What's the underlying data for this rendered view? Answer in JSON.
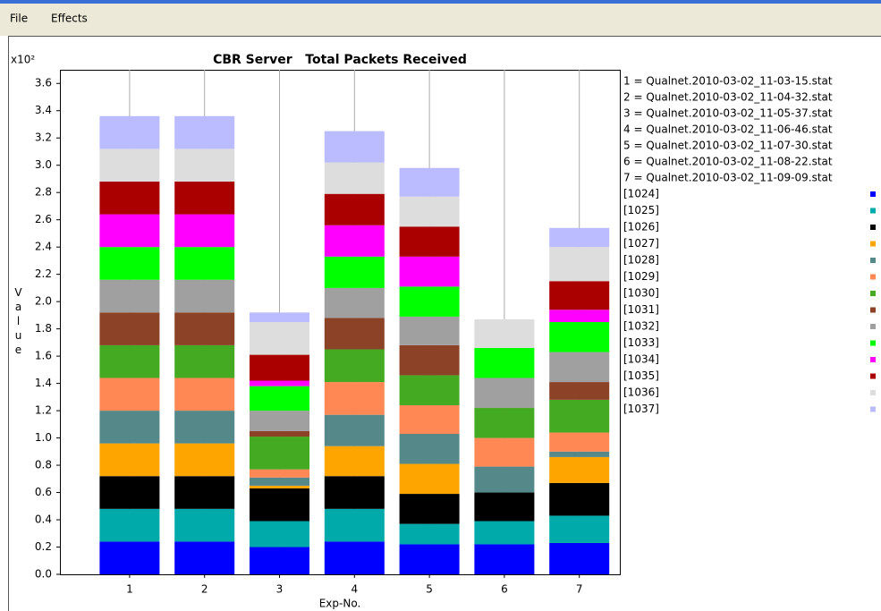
{
  "menu": [
    "File",
    "Effects"
  ],
  "chart_data": {
    "type": "stacked_bar",
    "title": "CBR Server   Total Packets Received",
    "y_scale_label": "x10²",
    "y_label": "Value",
    "x_label": "Exp-No.",
    "categories": [
      "1",
      "2",
      "3",
      "4",
      "5",
      "6",
      "7"
    ],
    "category_legend": [
      "1 = Qualnet.2010-03-02_11-03-15.stat",
      "2 = Qualnet.2010-03-02_11-04-32.stat",
      "3 = Qualnet.2010-03-02_11-05-37.stat",
      "4 = Qualnet.2010-03-02_11-06-46.stat",
      "5 = Qualnet.2010-03-02_11-07-30.stat",
      "6 = Qualnet.2010-03-02_11-08-22.stat",
      "7 = Qualnet.2010-03-02_11-09-09.stat"
    ],
    "ylim": [
      0,
      3.7
    ],
    "yticks": [
      {
        "value": 0,
        "label": "0.0"
      },
      0.2,
      0.4,
      0.6,
      0.8,
      {
        "value": 1,
        "label": "1.0"
      },
      1.2,
      1.4,
      1.6,
      1.8,
      {
        "value": 2,
        "label": "2.0"
      },
      2.2,
      2.4,
      2.6,
      2.8,
      {
        "value": 3,
        "label": "3.0"
      },
      3.2,
      3.4,
      3.6
    ],
    "series": [
      {
        "name": "[1024]",
        "color": "#0000ff",
        "values": [
          0.24,
          0.24,
          0.2,
          0.24,
          0.22,
          0.22,
          0.23
        ]
      },
      {
        "name": "[1025]",
        "color": "#00aaaa",
        "values": [
          0.24,
          0.24,
          0.19,
          0.24,
          0.15,
          0.17,
          0.2
        ]
      },
      {
        "name": "[1026]",
        "color": "#000000",
        "values": [
          0.24,
          0.24,
          0.24,
          0.24,
          0.22,
          0.21,
          0.24
        ]
      },
      {
        "name": "[1027]",
        "color": "#ffa500",
        "values": [
          0.24,
          0.24,
          0.02,
          0.22,
          0.22,
          0,
          0.19
        ]
      },
      {
        "name": "[1028]",
        "color": "#558888",
        "values": [
          0.24,
          0.24,
          0.06,
          0.23,
          0.22,
          0.19,
          0.04
        ]
      },
      {
        "name": "[1029]",
        "color": "#ff8855",
        "values": [
          0.24,
          0.24,
          0.06,
          0.24,
          0.21,
          0.21,
          0.14
        ]
      },
      {
        "name": "[1030]",
        "color": "#44aa22",
        "values": [
          0.24,
          0.24,
          0.24,
          0.24,
          0.22,
          0.22,
          0.24
        ]
      },
      {
        "name": "[1031]",
        "color": "#8b4226",
        "values": [
          0.24,
          0.24,
          0.04,
          0.23,
          0.22,
          0,
          0.13
        ]
      },
      {
        "name": "[1032]",
        "color": "#a0a0a0",
        "values": [
          0.24,
          0.24,
          0.15,
          0.22,
          0.21,
          0.22,
          0.22
        ]
      },
      {
        "name": "[1033]",
        "color": "#00ff00",
        "values": [
          0.24,
          0.24,
          0.18,
          0.23,
          0.22,
          0.22,
          0.22
        ]
      },
      {
        "name": "[1034]",
        "color": "#ff00ff",
        "values": [
          0.24,
          0.24,
          0.04,
          0.23,
          0.22,
          0,
          0.09
        ]
      },
      {
        "name": "[1035]",
        "color": "#aa0000",
        "values": [
          0.24,
          0.24,
          0.19,
          0.23,
          0.22,
          0,
          0.21
        ]
      },
      {
        "name": "[1036]",
        "color": "#dddddd",
        "values": [
          0.24,
          0.24,
          0.24,
          0.23,
          0.22,
          0.21,
          0.25
        ]
      },
      {
        "name": "[1037]",
        "color": "#bbbbff",
        "values": [
          0.24,
          0.24,
          0.07,
          0.23,
          0.21,
          0,
          0.14
        ]
      }
    ]
  }
}
